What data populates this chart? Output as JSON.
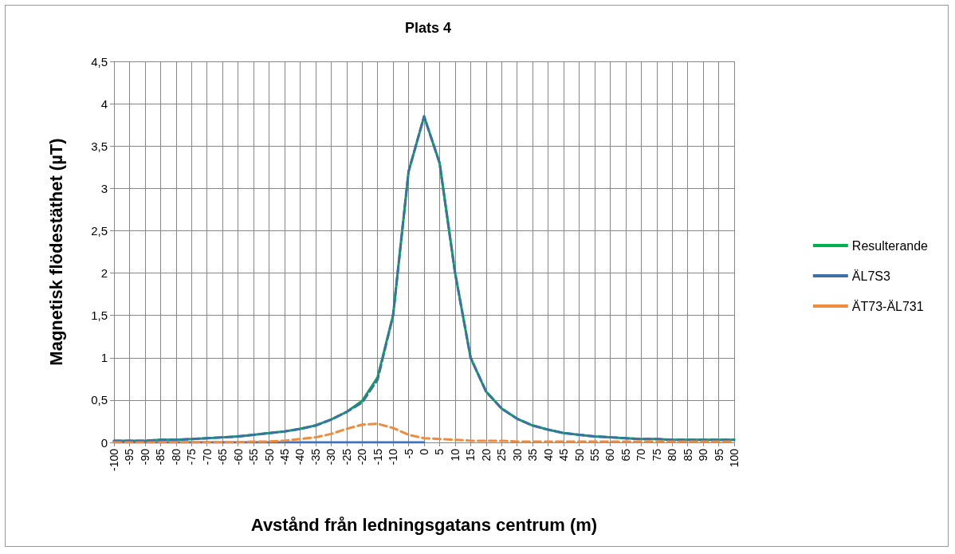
{
  "chart_data": {
    "type": "line",
    "title": "Plats 4",
    "xlabel": "Avstånd från ledningsgatans centrum (m)",
    "ylabel": "Magnetisk flödestäthet (µT)",
    "categories": [
      "-100",
      "-95",
      "-90",
      "-85",
      "-80",
      "-75",
      "-70",
      "-65",
      "-60",
      "-55",
      "-50",
      "-45",
      "-40",
      "-35",
      "-30",
      "-25",
      "-20",
      "-15",
      "-10",
      "-5",
      "0",
      "5",
      "10",
      "15",
      "20",
      "25",
      "30",
      "35",
      "40",
      "45",
      "50",
      "55",
      "60",
      "65",
      "70",
      "75",
      "80",
      "85",
      "90",
      "95",
      "100"
    ],
    "series": [
      {
        "name": "Resulterande",
        "color": "#00b050",
        "line_style": "solid",
        "values": [
          0.02,
          0.02,
          0.02,
          0.03,
          0.03,
          0.04,
          0.05,
          0.06,
          0.07,
          0.09,
          0.11,
          0.13,
          0.16,
          0.2,
          0.27,
          0.36,
          0.49,
          0.77,
          1.5,
          3.2,
          3.85,
          3.3,
          2.0,
          1.0,
          0.6,
          0.4,
          0.28,
          0.2,
          0.15,
          0.11,
          0.09,
          0.07,
          0.06,
          0.05,
          0.04,
          0.04,
          0.03,
          0.03,
          0.03,
          0.03,
          0.03
        ]
      },
      {
        "name": "ÄL7S3",
        "color": "#3e6fa8",
        "line_style": "dashed",
        "values": [
          0.02,
          0.02,
          0.02,
          0.03,
          0.03,
          0.04,
          0.05,
          0.06,
          0.07,
          0.09,
          0.11,
          0.13,
          0.16,
          0.2,
          0.27,
          0.36,
          0.47,
          0.74,
          1.5,
          3.2,
          3.85,
          3.3,
          2.0,
          1.0,
          0.6,
          0.4,
          0.28,
          0.2,
          0.15,
          0.11,
          0.09,
          0.07,
          0.06,
          0.05,
          0.04,
          0.04,
          0.03,
          0.03,
          0.03,
          0.03,
          0.03
        ]
      },
      {
        "name": "ÄT73-ÄL731",
        "color": "#f08a3c",
        "line_style": "dashed",
        "values": [
          0,
          0,
          0,
          0,
          0,
          0,
          0,
          0,
          0,
          0.01,
          0.01,
          0.02,
          0.04,
          0.06,
          0.1,
          0.16,
          0.21,
          0.22,
          0.17,
          0.09,
          0.05,
          0.04,
          0.03,
          0.02,
          0.02,
          0.02,
          0.01,
          0.01,
          0.01,
          0.01,
          0.01,
          0.01,
          0.01,
          0.01,
          0.01,
          0.01,
          0.01,
          0.01,
          0.01,
          0.01,
          0.01
        ]
      },
      {
        "color": "#3f72c0",
        "line_style": "solid",
        "values": [
          0,
          0,
          0,
          0,
          0,
          0,
          0,
          0,
          0,
          0,
          0,
          0,
          0,
          0,
          0,
          0,
          0,
          0,
          0,
          0,
          0,
          null,
          null,
          null,
          null,
          null,
          null,
          null,
          null,
          null,
          null,
          null,
          null,
          null,
          null,
          null,
          null,
          null,
          null,
          null,
          null
        ]
      }
    ],
    "ylim": [
      0,
      4.5
    ],
    "yticks": [
      0,
      {
        "value": 0.5,
        "label": "0,5"
      },
      1,
      {
        "value": 1.5,
        "label": "1,5"
      },
      2,
      {
        "value": 2.5,
        "label": "2,5"
      },
      3,
      {
        "value": 3.5,
        "label": "3,5"
      },
      4,
      {
        "value": 4.5,
        "label": "4,5"
      }
    ],
    "grid": true,
    "legend": "right"
  }
}
